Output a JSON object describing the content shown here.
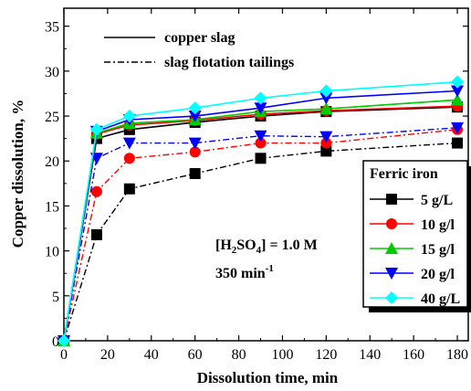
{
  "chart_data": {
    "type": "line",
    "xlabel": "Dissolution time, min",
    "ylabel": "Copper dissolution, %",
    "xlim": [
      0,
      185
    ],
    "ylim": [
      0,
      37
    ],
    "x_ticks": [
      0,
      20,
      40,
      60,
      80,
      100,
      120,
      140,
      160,
      180
    ],
    "y_ticks": [
      0,
      5,
      10,
      15,
      20,
      25,
      30,
      35
    ],
    "x": [
      0,
      15,
      30,
      60,
      90,
      120,
      180
    ],
    "annotation_line1_main": "[H",
    "annotation_line1_sub": "2",
    "annotation_line1_rest": "SO",
    "annotation_line1_sub2": "4",
    "annotation_line1_end": "] = 1.0 M",
    "annotation_line2_main": "350 min",
    "annotation_line2_sup": "-1",
    "line_legend": [
      {
        "label": "copper slag",
        "style": "solid"
      },
      {
        "label": "slag flotation tailings",
        "style": "dashdot"
      }
    ],
    "marker_legend_title": "Ferric iron",
    "series": [
      {
        "name": "5 g/L",
        "color": "#000000",
        "marker": "square",
        "solid": [
          0,
          22.5,
          23.5,
          24.3,
          25.0,
          25.5,
          26.0
        ],
        "dashed": [
          0,
          11.8,
          16.9,
          18.6,
          20.3,
          21.1,
          22.0
        ]
      },
      {
        "name": "10 g/l",
        "color": "#ff0000",
        "marker": "circle",
        "solid": [
          0,
          23.0,
          24.0,
          24.5,
          25.2,
          25.6,
          26.1
        ],
        "dashed": [
          0,
          16.6,
          20.3,
          21.0,
          22.0,
          22.0,
          23.5
        ]
      },
      {
        "name": "15 g/l",
        "color": "#00cc00",
        "marker": "triangle-up",
        "solid": [
          0,
          23.1,
          24.2,
          24.6,
          25.5,
          25.8,
          26.8
        ],
        "dashed": [
          0,
          23.1,
          24.2,
          24.6,
          25.5,
          25.8,
          26.8
        ]
      },
      {
        "name": "20 g/l",
        "color": "#0000ff",
        "marker": "triangle-down",
        "solid": [
          0,
          23.3,
          24.6,
          25.0,
          25.9,
          27.0,
          27.8
        ],
        "dashed": [
          0,
          20.3,
          22.0,
          22.0,
          22.8,
          22.7,
          23.7
        ]
      },
      {
        "name": "40 g/L",
        "color": "#00ffff",
        "marker": "diamond",
        "solid": [
          0,
          23.5,
          25.0,
          25.9,
          27.0,
          27.8,
          28.8
        ],
        "dashed": [
          0,
          23.5,
          25.0,
          25.9,
          27.0,
          27.8,
          28.8
        ]
      }
    ]
  }
}
